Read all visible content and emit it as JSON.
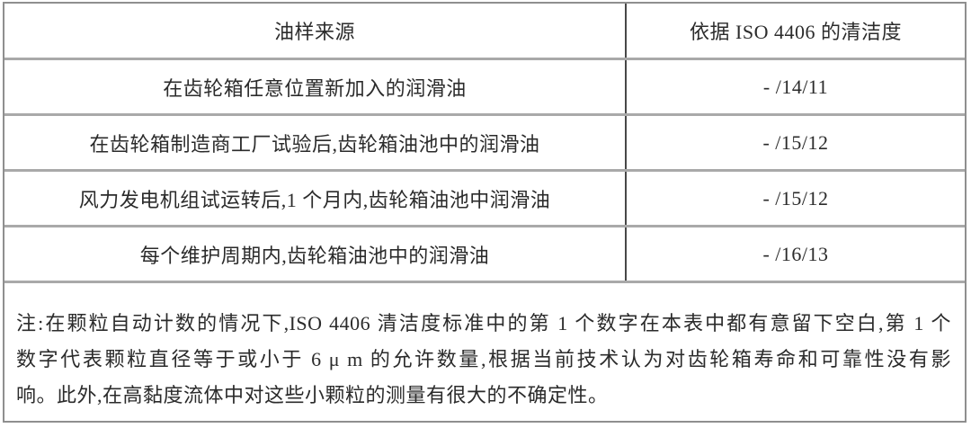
{
  "table": {
    "columns": [
      {
        "label": "油样来源"
      },
      {
        "label": "依据 ISO 4406 的清洁度"
      }
    ],
    "rows": [
      {
        "source": "在齿轮箱任意位置新加入的润滑油",
        "cleanliness": "- /14/11"
      },
      {
        "source": "在齿轮箱制造商工厂试验后,齿轮箱油池中的润滑油",
        "cleanliness": "- /15/12"
      },
      {
        "source": "风力发电机组试运转后,1 个月内,齿轮箱油池中润滑油",
        "cleanliness": "- /15/12"
      },
      {
        "source": "每个维护周期内,齿轮箱油池中的润滑油",
        "cleanliness": "- /16/13"
      }
    ],
    "note": {
      "lines": [
        "注:在颗粒自动计数的情况下,ISO 4406 清洁度标准中的第 1 个数字在本表中都有意留下空白,第 1 个",
        "数字代表颗粒直径等于或小于 6 μ m 的允许数量,根据当前技术认为对齿轮箱寿命和可靠性没有影",
        "响。此外,在高黏度流体中对这些小颗粒的测量有很大的不确定性。"
      ]
    }
  },
  "colors": {
    "outer_border": "#8f8f8f",
    "row_border": "#a9a9a9",
    "column_divider": "#474747",
    "text": "#2b2b2b",
    "background": "#ffffff"
  },
  "chart_data": {
    "type": "table",
    "title": "",
    "columns": [
      "油样来源",
      "依据 ISO 4406 的清洁度"
    ],
    "rows": [
      [
        "在齿轮箱任意位置新加入的润滑油",
        "- /14/11"
      ],
      [
        "在齿轮箱制造商工厂试验后,齿轮箱油池中的润滑油",
        "- /15/12"
      ],
      [
        "风力发电机组试运转后,1 个月内,齿轮箱油池中润滑油",
        "- /15/12"
      ],
      [
        "每个维护周期内,齿轮箱油池中的润滑油",
        "- /16/13"
      ]
    ]
  }
}
